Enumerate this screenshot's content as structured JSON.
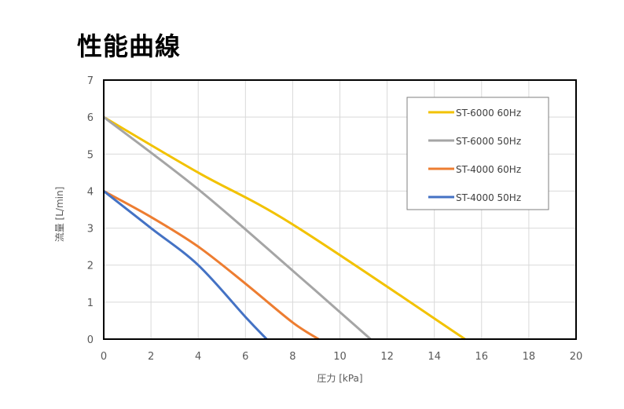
{
  "page": {
    "title": "性能曲線"
  },
  "chart_data": {
    "type": "line",
    "title": "",
    "xlabel": "圧力 [kPa]",
    "ylabel": "流量 [L/min]",
    "xlim": [
      0,
      20
    ],
    "ylim": [
      0,
      7
    ],
    "x_ticks": [
      "0",
      "2",
      "4",
      "6",
      "8",
      "10",
      "12",
      "14",
      "16",
      "18",
      "20"
    ],
    "y_ticks": [
      "0",
      "1",
      "2",
      "3",
      "4",
      "5",
      "6",
      "7"
    ],
    "grid": true,
    "legend_position": "top-right",
    "series": [
      {
        "name": "ST-6000 60Hz",
        "color": "#f2c200",
        "points": [
          [
            0,
            6
          ],
          [
            4,
            4.5
          ],
          [
            8,
            3.1
          ],
          [
            15.3,
            0
          ]
        ]
      },
      {
        "name": "ST-6000 50Hz",
        "color": "#a5a5a5",
        "points": [
          [
            0,
            6
          ],
          [
            4,
            4.05
          ],
          [
            8,
            1.85
          ],
          [
            11.3,
            0
          ]
        ]
      },
      {
        "name": "ST-4000 60Hz",
        "color": "#ed7d31",
        "points": [
          [
            0,
            4
          ],
          [
            2,
            3.3
          ],
          [
            4,
            2.5
          ],
          [
            6,
            1.5
          ],
          [
            8,
            0.45
          ],
          [
            9.1,
            0
          ]
        ]
      },
      {
        "name": "ST-4000 50Hz",
        "color": "#4472c4",
        "points": [
          [
            0,
            4
          ],
          [
            2,
            3.0
          ],
          [
            4,
            2.0
          ],
          [
            6,
            0.6
          ],
          [
            6.9,
            0
          ]
        ]
      }
    ]
  }
}
